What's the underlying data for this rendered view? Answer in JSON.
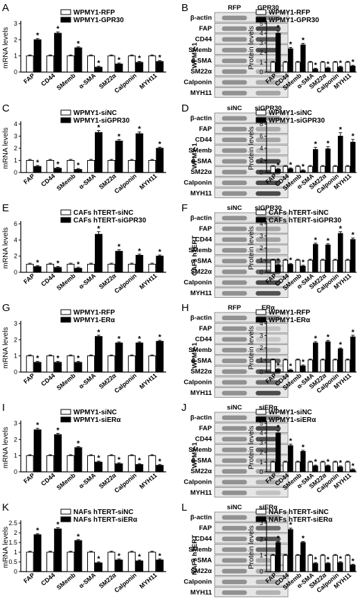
{
  "colors": {
    "white_bar": "#ffffff",
    "black_bar": "#000000",
    "axis": "#000000",
    "blot_bg": "#e6e6e6",
    "band": "#4a4a4a"
  },
  "categories": [
    "FAP",
    "CD44",
    "SMemb",
    "α-SMA",
    "SM22α",
    "Calponin",
    "MYH11"
  ],
  "blot_rows": [
    "β-actin",
    "FAP",
    "CD44",
    "SMemb",
    "α-SMA",
    "SM22α",
    "Calponin",
    "MYH11"
  ],
  "chart_data": [
    {
      "panel": "A",
      "type": "bar",
      "ylabel": "mRNA levels",
      "ylim": [
        0,
        3
      ],
      "yticks": [
        0,
        1,
        2,
        3
      ],
      "series": [
        {
          "name": "WPMY1-RFP",
          "values": [
            1,
            1,
            1,
            1,
            1,
            1,
            1
          ]
        },
        {
          "name": "WPMY1-GPR30",
          "values": [
            2.0,
            2.4,
            1.5,
            0.3,
            0.5,
            0.6,
            0.65
          ]
        }
      ],
      "sig": [
        1,
        1,
        1,
        1,
        1,
        1,
        1
      ]
    },
    {
      "panel": "B",
      "type": "bar",
      "ylabel": "Protein levels",
      "ylim": [
        0,
        5
      ],
      "yticks": [
        0,
        1,
        2,
        3,
        4,
        5
      ],
      "series": [
        {
          "name": "WPMY1-RFP",
          "values": [
            1,
            1,
            1,
            1,
            1,
            1,
            1
          ]
        },
        {
          "name": "WPMY1-GPR30",
          "values": [
            4.0,
            2.4,
            2.8,
            0.3,
            0.4,
            0.5,
            0.6
          ]
        }
      ],
      "sig": [
        1,
        1,
        1,
        1,
        1,
        1,
        1
      ]
    },
    {
      "panel": "C",
      "type": "bar",
      "ylabel": "mRNA levels",
      "ylim": [
        0,
        4
      ],
      "yticks": [
        0,
        1,
        2,
        3,
        4
      ],
      "series": [
        {
          "name": "WPMY1-siNC",
          "values": [
            1,
            1,
            1,
            1,
            1,
            1,
            1
          ]
        },
        {
          "name": "WPMY1-siGPR30",
          "values": [
            0.5,
            0.35,
            0.25,
            3.3,
            2.6,
            3.2,
            2.0
          ]
        }
      ],
      "sig": [
        1,
        1,
        1,
        1,
        1,
        1,
        1
      ]
    },
    {
      "panel": "D",
      "type": "bar",
      "ylabel": "Protein levels",
      "ylim": [
        0,
        8
      ],
      "yticks": [
        0,
        2,
        4,
        6,
        8
      ],
      "series": [
        {
          "name": "WPMY1-siNC",
          "values": [
            1,
            1,
            1,
            1,
            1,
            1,
            1
          ]
        },
        {
          "name": "WPMY1-siGPR30",
          "values": [
            0.5,
            0.6,
            0.3,
            3.8,
            3.9,
            6.0,
            5.0
          ]
        }
      ],
      "sig": [
        1,
        1,
        1,
        1,
        1,
        1,
        1
      ]
    },
    {
      "panel": "E",
      "type": "bar",
      "ylabel": "mRNA levels",
      "ylim": [
        0,
        6
      ],
      "yticks": [
        0,
        2,
        4,
        6
      ],
      "series": [
        {
          "name": "CAFs hTERT-siNC",
          "values": [
            1,
            1,
            1,
            1,
            1,
            1,
            1
          ]
        },
        {
          "name": "CAFs hTERT-siGPR30",
          "values": [
            0.7,
            0.6,
            0.5,
            4.7,
            2.6,
            2.1,
            2.0
          ]
        }
      ],
      "sig": [
        1,
        1,
        1,
        1,
        1,
        1,
        1
      ]
    },
    {
      "panel": "F",
      "type": "bar",
      "ylabel": "Protein levels",
      "ylim": [
        0,
        4
      ],
      "yticks": [
        0,
        1,
        2,
        3,
        4
      ],
      "series": [
        {
          "name": "CAFs hTERT-siNC",
          "values": [
            1,
            1,
            1,
            1,
            1,
            1,
            1
          ]
        },
        {
          "name": "CAFs hTERT-siGPR30",
          "values": [
            0.6,
            0.65,
            0.5,
            2.3,
            2.25,
            3.2,
            2.7
          ]
        }
      ],
      "sig": [
        1,
        1,
        1,
        1,
        1,
        1,
        1
      ]
    },
    {
      "panel": "G",
      "type": "bar",
      "ylabel": "mRNA levels",
      "ylim": [
        0,
        3
      ],
      "yticks": [
        0,
        1,
        2,
        3
      ],
      "series": [
        {
          "name": "WPMY1-RFP",
          "values": [
            1,
            1,
            1,
            1,
            1,
            1,
            1
          ]
        },
        {
          "name": "WPMY1-ERα",
          "values": [
            0.6,
            0.6,
            0.6,
            2.2,
            1.8,
            1.8,
            1.9
          ]
        }
      ],
      "sig": [
        1,
        1,
        1,
        1,
        1,
        1,
        1
      ]
    },
    {
      "panel": "H",
      "type": "bar",
      "ylabel": "Protein levels",
      "ylim": [
        0,
        4
      ],
      "yticks": [
        0,
        1,
        2,
        3,
        4
      ],
      "series": [
        {
          "name": "WPMY1-RFP",
          "values": [
            1,
            1,
            1,
            1,
            1,
            1,
            1
          ]
        },
        {
          "name": "WPMY1-ERα",
          "values": [
            0.2,
            0.15,
            0.5,
            2.4,
            2.5,
            1.9,
            2.9
          ]
        }
      ],
      "sig": [
        1,
        1,
        1,
        1,
        1,
        1,
        1
      ]
    },
    {
      "panel": "I",
      "type": "bar",
      "ylabel": "mRNA levels",
      "ylim": [
        0,
        3
      ],
      "yticks": [
        0,
        1,
        2,
        3
      ],
      "series": [
        {
          "name": "WPMY1-siNC",
          "values": [
            1,
            1,
            1,
            1,
            1,
            1,
            1
          ]
        },
        {
          "name": "WPMY1-siERα",
          "values": [
            2.6,
            2.3,
            1.5,
            0.6,
            0.5,
            0.45,
            0.4
          ]
        }
      ],
      "sig": [
        1,
        1,
        1,
        1,
        1,
        1,
        1
      ]
    },
    {
      "panel": "J",
      "type": "bar",
      "ylabel": "Protein levels",
      "ylim": [
        0,
        5
      ],
      "yticks": [
        0,
        1,
        2,
        3,
        4,
        5
      ],
      "series": [
        {
          "name": "WPMY1-siNC",
          "values": [
            1,
            1,
            1,
            1,
            1,
            1,
            1
          ]
        },
        {
          "name": "WPMY1-siERα",
          "values": [
            4.0,
            2.7,
            2.1,
            0.6,
            0.6,
            0.5,
            0.2
          ]
        }
      ],
      "sig": [
        1,
        1,
        1,
        1,
        1,
        1,
        1
      ]
    },
    {
      "panel": "K",
      "type": "bar",
      "ylabel": "mRNA levels",
      "ylim": [
        0,
        2.5
      ],
      "yticks": [
        0,
        0.5,
        1,
        1.5,
        2,
        2.5
      ],
      "series": [
        {
          "name": "NAFs hTERT-siNC",
          "values": [
            1,
            1,
            1,
            1,
            1,
            1,
            1
          ]
        },
        {
          "name": "NAFs hTERT-siERα",
          "values": [
            1.9,
            2.2,
            1.6,
            0.45,
            0.6,
            0.55,
            0.6
          ]
        }
      ],
      "sig": [
        1,
        1,
        1,
        1,
        1,
        1,
        1
      ]
    },
    {
      "panel": "L",
      "type": "bar",
      "ylabel": "Protein levels",
      "ylim": [
        0,
        3
      ],
      "yticks": [
        0,
        1,
        2,
        3
      ],
      "series": [
        {
          "name": "NAFs hTERT-siNC",
          "values": [
            1,
            1,
            1,
            1,
            1,
            1,
            1
          ]
        },
        {
          "name": "NAFs hTERT-siERα",
          "values": [
            1.8,
            2.6,
            1.8,
            0.5,
            0.5,
            0.55,
            0.4
          ]
        }
      ],
      "sig": [
        1,
        1,
        1,
        1,
        1,
        1,
        1
      ]
    }
  ],
  "blots": {
    "B": {
      "side": "WPMY-1",
      "cols": [
        "RFP",
        "GPR30"
      ],
      "ratio": [
        1,
        4,
        2.4,
        2.8,
        0.3,
        0.4,
        0.5,
        0.6
      ]
    },
    "D": {
      "side": "WPMY-1",
      "cols": [
        "siNC",
        "siGPR30"
      ],
      "ratio": [
        1,
        0.5,
        0.6,
        0.3,
        3.8,
        3.9,
        6,
        5
      ]
    },
    "F": {
      "side": "CAFs hTERT",
      "cols": [
        "siNC",
        "siGPR30"
      ],
      "ratio": [
        1,
        0.6,
        0.65,
        0.5,
        2.3,
        2.25,
        3.2,
        2.7
      ]
    },
    "H": {
      "side": "WPMY-1",
      "cols": [
        "RFP",
        "ERα"
      ],
      "ratio": [
        1,
        0.2,
        0.15,
        0.5,
        2.4,
        2.5,
        1.9,
        2.9
      ]
    },
    "J": {
      "side": "WPMY-1",
      "cols": [
        "siNC",
        "siERα"
      ],
      "ratio": [
        1,
        4,
        2.7,
        2.1,
        0.6,
        0.6,
        0.5,
        0.2
      ]
    },
    "L": {
      "side": "NAFs hTERT",
      "cols": [
        "siNC",
        "siERα"
      ],
      "ratio": [
        1,
        1.8,
        2.6,
        1.8,
        0.5,
        0.5,
        0.55,
        0.4
      ]
    }
  }
}
